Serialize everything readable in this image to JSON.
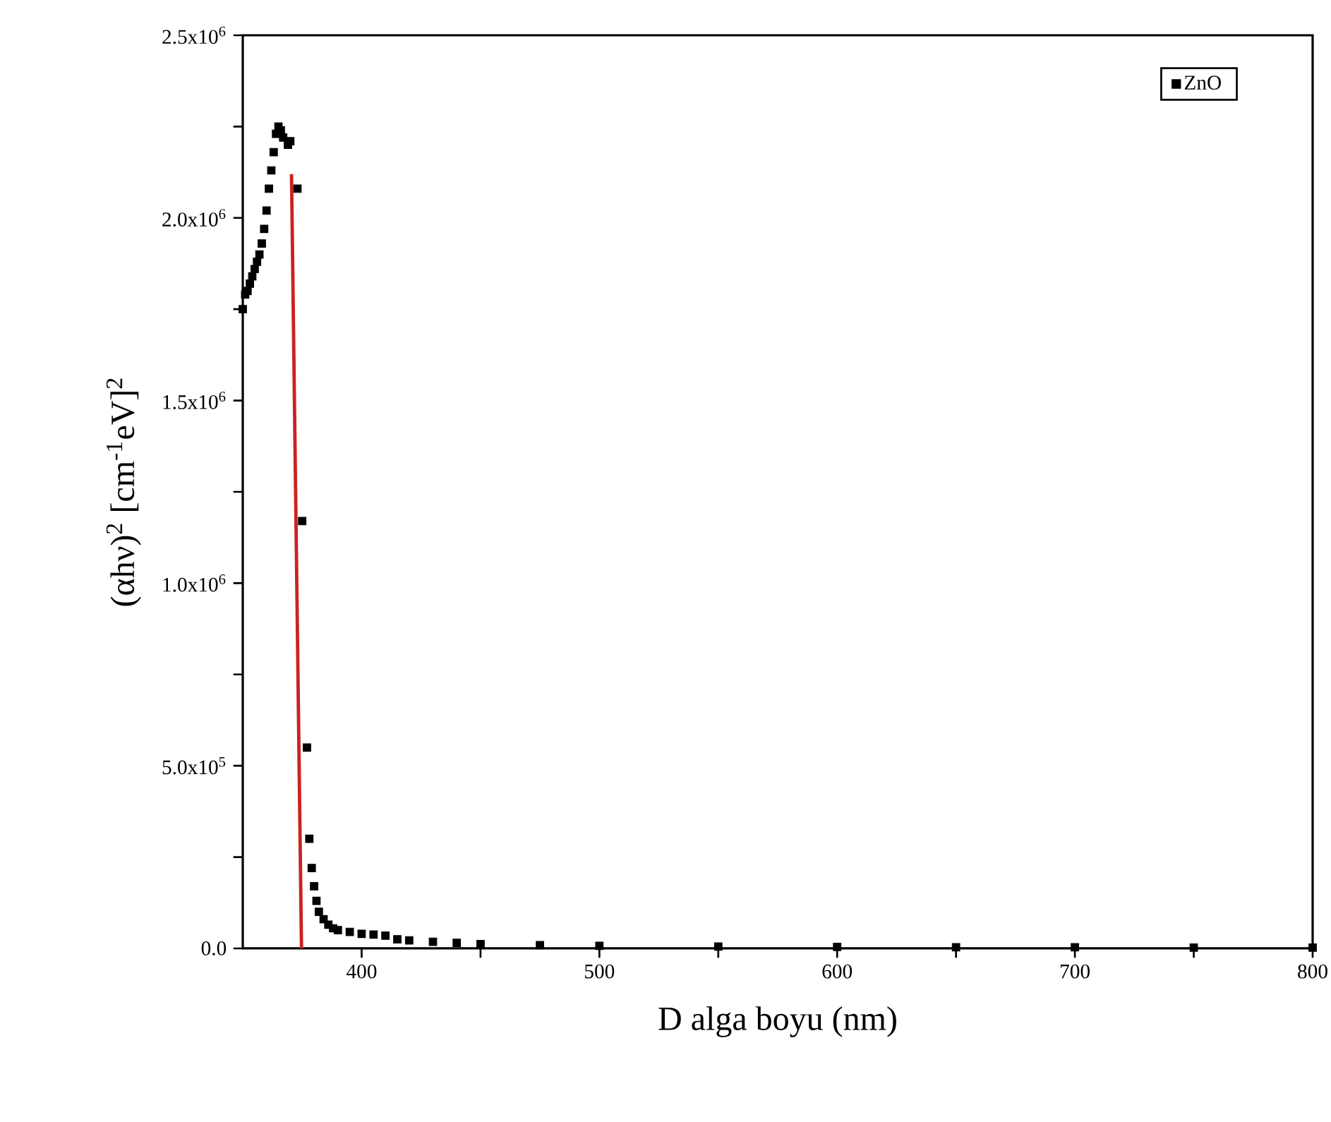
{
  "chart_data": {
    "type": "scatter",
    "xlabel": "D alga boyu (nm)",
    "ylabel": "(αhν)$^{2}$ [cm$^{-1}$eV]$^{2}$",
    "xlim": [
      350,
      800
    ],
    "ylim": [
      0,
      2500000
    ],
    "xticks": [
      400,
      {
        "value": 450,
        "label": null
      },
      500,
      {
        "value": 550,
        "label": null
      },
      600,
      {
        "value": 650,
        "label": null
      },
      700,
      {
        "value": 750,
        "label": null
      },
      800
    ],
    "yticks": [
      {
        "value": 0,
        "label": "0.0"
      },
      {
        "value": 250000,
        "label": null
      },
      {
        "value": 500000,
        "label": "5.0x10$^{5}$"
      },
      {
        "value": 750000,
        "label": null
      },
      {
        "value": 1000000,
        "label": "1.0x10$^{6}$"
      },
      {
        "value": 1250000,
        "label": null
      },
      {
        "value": 1500000,
        "label": "1.5x10$^{6}$"
      },
      {
        "value": 1750000,
        "label": null
      },
      {
        "value": 2000000,
        "label": "2.0x10$^{6}$"
      },
      {
        "value": 2250000,
        "label": null
      },
      {
        "value": 2500000,
        "label": "2.5x10$^{6}$"
      }
    ],
    "legend": "top right",
    "series": [
      {
        "name": "ZnO",
        "marker": "square",
        "color": "#000000",
        "x": [
          350,
          351,
          352,
          353,
          354,
          355,
          356,
          357,
          358,
          359,
          360,
          361,
          362,
          363,
          364,
          365,
          366,
          367,
          369,
          370,
          373,
          375,
          377,
          378,
          379,
          380,
          381,
          382,
          384,
          386,
          388,
          390,
          395,
          400,
          405,
          410,
          415,
          420,
          430,
          440,
          450,
          475,
          500,
          550,
          600,
          650,
          700,
          750,
          800
        ],
        "values": [
          1750000,
          1790000,
          1800000,
          1820000,
          1840000,
          1860000,
          1880000,
          1900000,
          1930000,
          1970000,
          2020000,
          2080000,
          2130000,
          2180000,
          2230000,
          2250000,
          2240000,
          2220000,
          2200000,
          2210000,
          2080000,
          1170000,
          550000,
          300000,
          220000,
          170000,
          130000,
          100000,
          80000,
          65000,
          55000,
          50000,
          45000,
          40000,
          38000,
          35000,
          25000,
          22000,
          18000,
          15000,
          12000,
          9000,
          7000,
          5000,
          4000,
          3000,
          3000,
          2000,
          2000
        ]
      },
      {
        "type": "line",
        "color": "#cc2222",
        "x": [
          370.5,
          374.7
        ],
        "values": [
          2120000,
          0
        ]
      }
    ]
  }
}
